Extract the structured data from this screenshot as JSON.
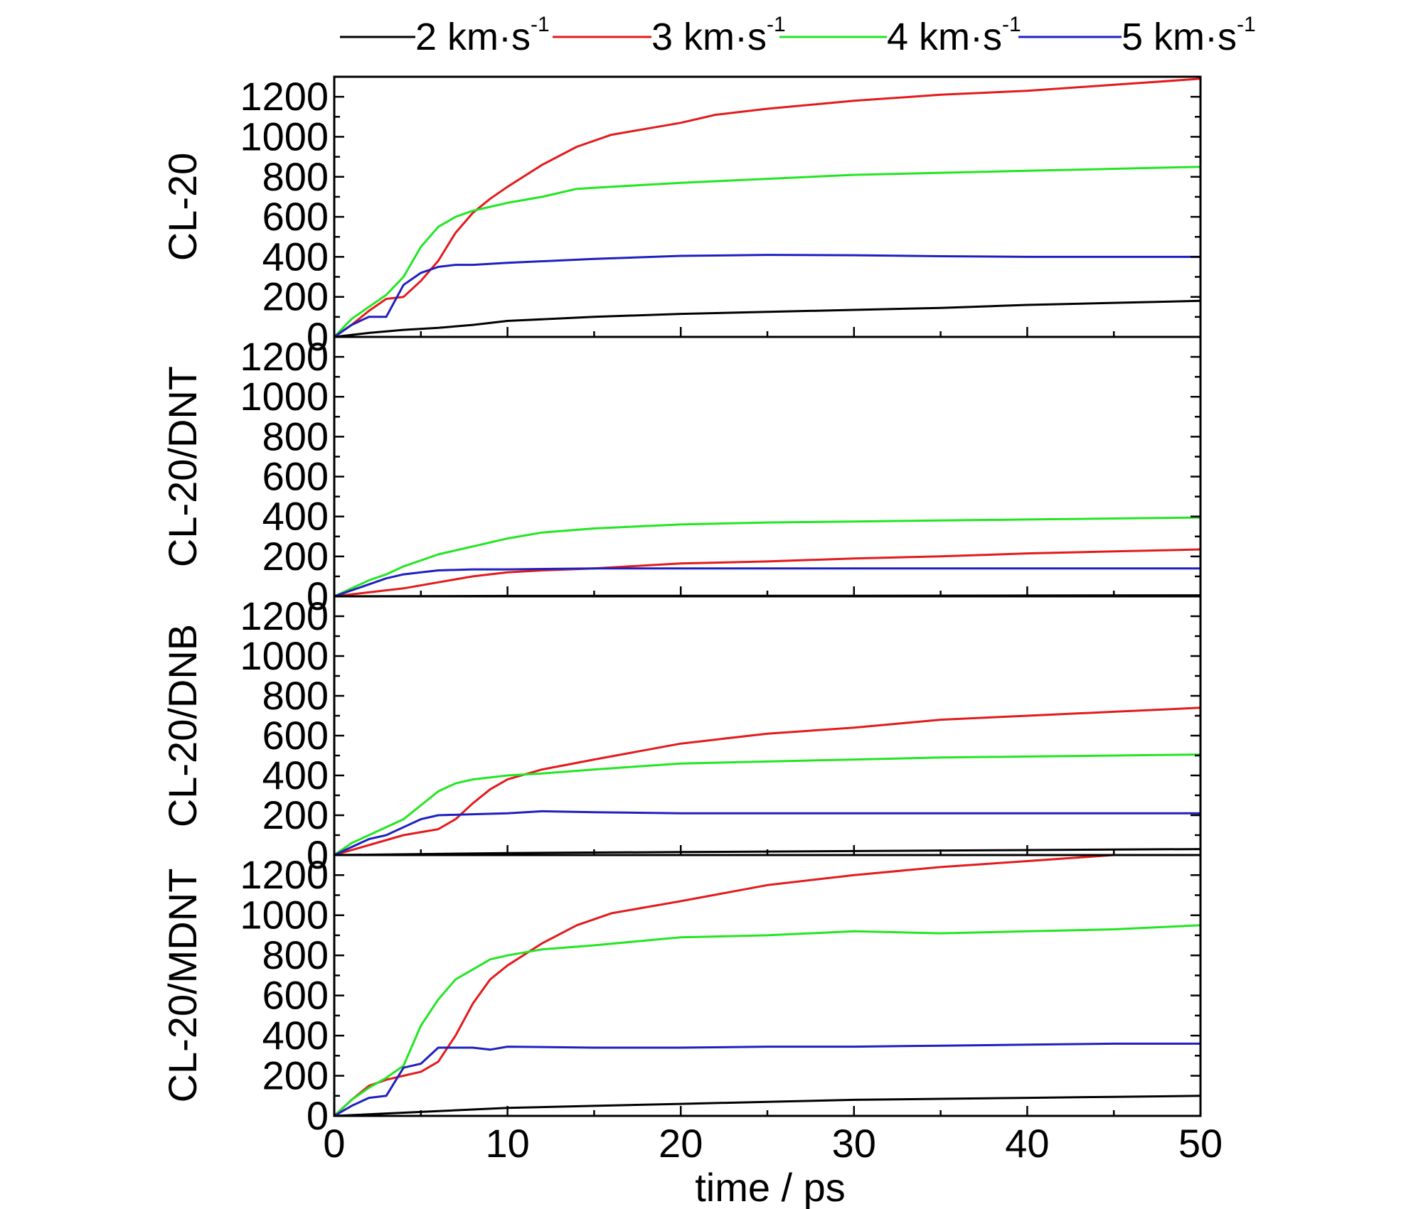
{
  "chart_data": {
    "type": "line",
    "x_axis": {
      "label": "time / ps",
      "range": [
        0,
        50
      ],
      "ticks": [
        0,
        10,
        20,
        30,
        40,
        50
      ],
      "tick_labels": [
        "0",
        "10",
        "20",
        "30",
        "40",
        "50"
      ]
    },
    "y_axis": {
      "range": [
        0,
        1300
      ],
      "ticks": [
        0,
        200,
        400,
        600,
        800,
        1000,
        1200
      ],
      "tick_labels": [
        "0",
        "200",
        "400",
        "600",
        "800",
        "1000",
        "1200"
      ]
    },
    "legend": {
      "placement": "top",
      "entries": [
        {
          "series": "2 km·s",
          "text": "2 km·s",
          "sup": "-1",
          "color": "#000000"
        },
        {
          "series": "3 km·s",
          "text": "3 km·s",
          "sup": "-1",
          "color": "#e31a1c"
        },
        {
          "series": "4 km·s",
          "text": "4 km·s",
          "sup": "-1",
          "color": "#22e622"
        },
        {
          "series": "5 km·s",
          "text": "5 km·s",
          "sup": "-1",
          "color": "#1f1fbf"
        }
      ]
    },
    "panels": [
      {
        "label": "CL-20",
        "series": [
          {
            "name": "2 km·s",
            "color": "#000000",
            "x": [
              0,
              2,
              4,
              6,
              8,
              10,
              15,
              20,
              25,
              30,
              35,
              40,
              45,
              50
            ],
            "y": [
              0,
              20,
              35,
              45,
              60,
              80,
              100,
              115,
              125,
              135,
              145,
              160,
              170,
              180
            ]
          },
          {
            "name": "3 km·s",
            "color": "#e31a1c",
            "x": [
              0,
              1,
              2,
              3,
              4,
              5,
              6,
              7,
              8,
              9,
              10,
              12,
              14,
              16,
              18,
              20,
              22,
              25,
              30,
              35,
              40,
              45,
              50
            ],
            "y": [
              0,
              60,
              130,
              190,
              200,
              280,
              380,
              520,
              620,
              690,
              750,
              860,
              950,
              1010,
              1040,
              1070,
              1110,
              1140,
              1180,
              1210,
              1230,
              1260,
              1290
            ]
          },
          {
            "name": "4 km·s",
            "color": "#22e622",
            "x": [
              0,
              1,
              2,
              3,
              4,
              5,
              6,
              7,
              8,
              9,
              10,
              12,
              14,
              16,
              18,
              20,
              25,
              30,
              35,
              40,
              45,
              50
            ],
            "y": [
              0,
              90,
              150,
              210,
              300,
              450,
              550,
              600,
              630,
              650,
              670,
              700,
              740,
              750,
              760,
              770,
              790,
              810,
              820,
              830,
              840,
              850
            ]
          },
          {
            "name": "5 km·s",
            "color": "#1f1fbf",
            "x": [
              0,
              1,
              2,
              3,
              4,
              5,
              6,
              7,
              8,
              10,
              15,
              20,
              25,
              30,
              35,
              40,
              45,
              50
            ],
            "y": [
              0,
              60,
              100,
              100,
              260,
              320,
              350,
              360,
              360,
              370,
              390,
              405,
              410,
              408,
              403,
              400,
              400,
              400
            ]
          }
        ]
      },
      {
        "label": "CL-20/DNT",
        "series": [
          {
            "name": "2 km·s",
            "color": "#000000",
            "x": [
              0,
              10,
              20,
              30,
              40,
              50
            ],
            "y": [
              0,
              2,
              3,
              3,
              4,
              5
            ]
          },
          {
            "name": "3 km·s",
            "color": "#e31a1c",
            "x": [
              0,
              2,
              4,
              6,
              8,
              10,
              12,
              15,
              20,
              25,
              30,
              35,
              40,
              45,
              50
            ],
            "y": [
              0,
              20,
              40,
              70,
              100,
              120,
              130,
              140,
              165,
              175,
              190,
              200,
              215,
              225,
              235
            ]
          },
          {
            "name": "4 km·s",
            "color": "#22e622",
            "x": [
              0,
              1,
              2,
              3,
              4,
              5,
              6,
              8,
              10,
              12,
              15,
              20,
              25,
              30,
              35,
              40,
              45,
              50
            ],
            "y": [
              0,
              40,
              80,
              110,
              150,
              180,
              210,
              250,
              290,
              320,
              340,
              360,
              370,
              375,
              380,
              385,
              390,
              395
            ]
          },
          {
            "name": "5 km·s",
            "color": "#1f1fbf",
            "x": [
              0,
              1,
              2,
              3,
              4,
              5,
              6,
              8,
              10,
              15,
              20,
              25,
              30,
              35,
              40,
              45,
              50
            ],
            "y": [
              0,
              30,
              60,
              90,
              110,
              120,
              130,
              135,
              135,
              140,
              140,
              140,
              140,
              140,
              140,
              140,
              140
            ]
          }
        ]
      },
      {
        "label": "CL-20/DNB",
        "series": [
          {
            "name": "2 km·s",
            "color": "#000000",
            "x": [
              0,
              10,
              20,
              30,
              40,
              50
            ],
            "y": [
              0,
              10,
              15,
              20,
              25,
              30
            ]
          },
          {
            "name": "3 km·s",
            "color": "#e31a1c",
            "x": [
              0,
              2,
              4,
              6,
              7,
              8,
              9,
              10,
              12,
              15,
              20,
              25,
              30,
              35,
              40,
              45,
              50
            ],
            "y": [
              0,
              50,
              100,
              130,
              180,
              260,
              330,
              380,
              430,
              480,
              560,
              610,
              640,
              680,
              700,
              720,
              740
            ]
          },
          {
            "name": "4 km·s",
            "color": "#22e622",
            "x": [
              0,
              1,
              2,
              3,
              4,
              5,
              6,
              7,
              8,
              10,
              12,
              15,
              20,
              25,
              30,
              35,
              40,
              45,
              50
            ],
            "y": [
              0,
              60,
              100,
              140,
              180,
              250,
              320,
              360,
              380,
              400,
              410,
              430,
              460,
              470,
              480,
              490,
              495,
              500,
              505
            ]
          },
          {
            "name": "5 km·s",
            "color": "#1f1fbf",
            "x": [
              0,
              1,
              2,
              3,
              4,
              5,
              6,
              8,
              10,
              12,
              15,
              20,
              25,
              30,
              35,
              40,
              45,
              50
            ],
            "y": [
              0,
              40,
              80,
              100,
              140,
              180,
              200,
              205,
              210,
              220,
              215,
              210,
              210,
              210,
              210,
              210,
              210,
              210
            ]
          }
        ]
      },
      {
        "label": "CL-20/MDNT",
        "series": [
          {
            "name": "2 km·s",
            "color": "#000000",
            "x": [
              0,
              5,
              10,
              15,
              20,
              25,
              30,
              35,
              40,
              45,
              50
            ],
            "y": [
              0,
              20,
              40,
              50,
              60,
              70,
              80,
              85,
              90,
              95,
              100
            ]
          },
          {
            "name": "3 km·s",
            "color": "#e31a1c",
            "x": [
              0,
              1,
              2,
              3,
              4,
              5,
              6,
              7,
              8,
              9,
              10,
              12,
              14,
              16,
              18,
              20,
              25,
              30,
              35,
              40,
              45,
              50
            ],
            "y": [
              0,
              80,
              150,
              180,
              200,
              220,
              270,
              400,
              560,
              680,
              750,
              860,
              950,
              1010,
              1040,
              1070,
              1150,
              1200,
              1240,
              1270,
              1300,
              1300
            ]
          },
          {
            "name": "4 km·s",
            "color": "#22e622",
            "x": [
              0,
              1,
              2,
              3,
              4,
              5,
              6,
              7,
              8,
              9,
              10,
              12,
              15,
              20,
              25,
              30,
              35,
              40,
              45,
              50
            ],
            "y": [
              0,
              80,
              140,
              190,
              250,
              450,
              580,
              680,
              730,
              780,
              800,
              830,
              850,
              890,
              900,
              920,
              910,
              920,
              930,
              950
            ]
          },
          {
            "name": "5 km·s",
            "color": "#1f1fbf",
            "x": [
              0,
              1,
              2,
              3,
              4,
              5,
              6,
              7,
              8,
              9,
              10,
              15,
              20,
              25,
              30,
              35,
              40,
              45,
              50
            ],
            "y": [
              0,
              50,
              90,
              100,
              240,
              260,
              340,
              340,
              340,
              330,
              345,
              340,
              340,
              345,
              345,
              350,
              355,
              360,
              360
            ]
          }
        ]
      }
    ]
  }
}
